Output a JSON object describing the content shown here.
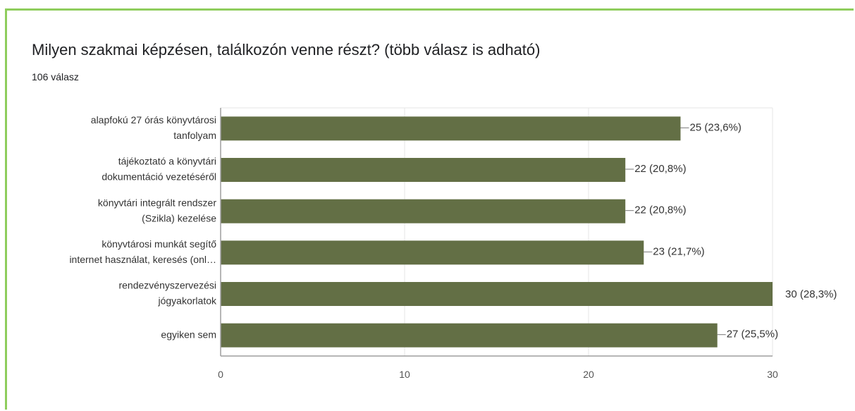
{
  "question": {
    "title": "Milyen szakmai képzésen, találkozón venne részt? (több válasz is adható)",
    "response_count": "106 válasz"
  },
  "chart_data": {
    "type": "bar",
    "orientation": "horizontal",
    "categories": [
      [
        "alapfokú 27 órás könyvtárosi",
        "tanfolyam"
      ],
      [
        "tájékoztató a könyvtári",
        "dokumentáció vezetéséről"
      ],
      [
        "könyvtári integrált rendszer",
        "(Szikla) kezelése"
      ],
      [
        "könyvtárosi munkát segítő",
        "internet használat, keresés (onl…"
      ],
      [
        "rendezvényszervezési",
        "jógyakorlatok"
      ],
      [
        "egyiken sem"
      ]
    ],
    "values": [
      25,
      22,
      22,
      23,
      30,
      27
    ],
    "data_labels": [
      "25 (23,6%)",
      "22 (20,8%)",
      "22 (20,8%)",
      "23 (21,7%)",
      "30 (28,3%)",
      "27 (25,5%)"
    ],
    "x_ticks": [
      0,
      10,
      20,
      30
    ],
    "xlim": [
      0,
      30
    ],
    "grid": true,
    "bar_color": "#636f45",
    "grid_color": "#e6e6e6",
    "axis_color": "#9e9e9e",
    "text_color": "#333333"
  }
}
